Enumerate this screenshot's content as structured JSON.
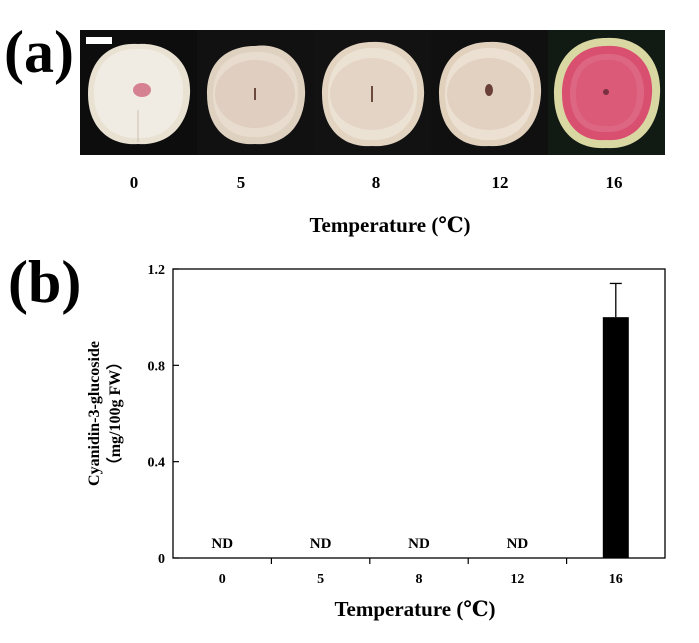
{
  "panel_a": {
    "label": "(a)",
    "temperatures": [
      "0",
      "5",
      "8",
      "12",
      "16"
    ],
    "xlabel": "Temperature (℃)",
    "flesh_colors": [
      "#efe9df",
      "#e8dccf",
      "#ece2d4",
      "#ebe0d2",
      "#d9506f"
    ]
  },
  "panel_b": {
    "label": "(b)"
  },
  "chart_data": {
    "type": "bar",
    "categories": [
      "0",
      "5",
      "8",
      "12",
      "16"
    ],
    "values": [
      null,
      null,
      null,
      null,
      1.0
    ],
    "error": [
      null,
      null,
      null,
      null,
      0.14
    ],
    "data_labels": [
      "ND",
      "ND",
      "ND",
      "ND",
      ""
    ],
    "xlabel": "Temperature (℃)",
    "ylabel": "Cyanidin-3-glucoside",
    "ylabel_unit": "（mg/100g FW）",
    "ylim": [
      0,
      1.2
    ],
    "yticks": [
      "0",
      "0.4",
      "0.8",
      "1.2"
    ],
    "bar_color": "#000000",
    "grid": false,
    "legend": "none"
  }
}
